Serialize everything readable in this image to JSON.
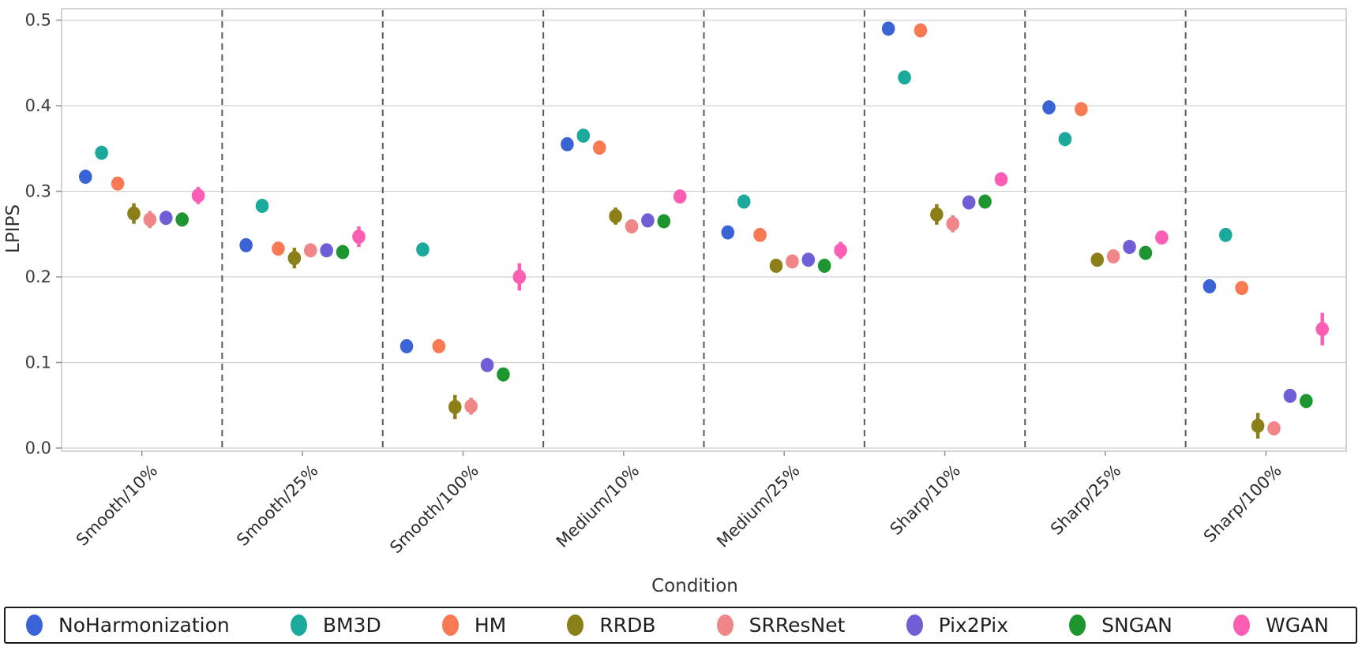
{
  "chart_data": {
    "type": "scatter",
    "title": "",
    "xlabel": "Condition",
    "ylabel": "LPIPS",
    "ylim": [
      0.0,
      0.5
    ],
    "yticks": [
      0.0,
      0.1,
      0.2,
      0.3,
      0.4,
      0.5
    ],
    "grid": true,
    "group_separators": "dashed",
    "legend_position": "bottom",
    "categories": [
      "Smooth/10%",
      "Smooth/25%",
      "Smooth/100%",
      "Medium/10%",
      "Medium/25%",
      "Sharp/10%",
      "Sharp/25%",
      "Sharp/100%"
    ],
    "series": [
      {
        "name": "NoHarmonization",
        "color": "#3A63D6",
        "values": [
          0.317,
          0.237,
          0.119,
          0.355,
          0.252,
          0.49,
          0.398,
          0.189
        ],
        "errors": [
          0.003,
          0.003,
          0.003,
          0.003,
          0.003,
          0.003,
          0.003,
          0.003
        ]
      },
      {
        "name": "BM3D",
        "color": "#1AA99A",
        "values": [
          0.345,
          0.283,
          0.232,
          0.365,
          0.288,
          0.433,
          0.361,
          0.249
        ],
        "errors": [
          0.003,
          0.003,
          0.003,
          0.003,
          0.003,
          0.003,
          0.003,
          0.003
        ]
      },
      {
        "name": "HM",
        "color": "#F97952",
        "values": [
          0.309,
          0.233,
          0.119,
          0.351,
          0.249,
          0.488,
          0.396,
          0.187
        ],
        "errors": [
          0.003,
          0.003,
          0.003,
          0.003,
          0.003,
          0.003,
          0.003,
          0.003
        ]
      },
      {
        "name": "RRDB",
        "color": "#8B7F17",
        "values": [
          0.274,
          0.222,
          0.048,
          0.271,
          0.213,
          0.273,
          0.22,
          0.026
        ],
        "errors": [
          0.012,
          0.012,
          0.014,
          0.01,
          0.008,
          0.012,
          0.008,
          0.015
        ]
      },
      {
        "name": "SRResNet",
        "color": "#F08688",
        "values": [
          0.267,
          0.231,
          0.049,
          0.259,
          0.218,
          0.262,
          0.224,
          0.023
        ],
        "errors": [
          0.01,
          0.006,
          0.01,
          0.008,
          0.006,
          0.01,
          0.006,
          0.008
        ]
      },
      {
        "name": "Pix2Pix",
        "color": "#6E5FD6",
        "values": [
          0.269,
          0.231,
          0.097,
          0.266,
          0.22,
          0.287,
          0.235,
          0.061
        ],
        "errors": [
          0.004,
          0.004,
          0.006,
          0.004,
          0.004,
          0.004,
          0.004,
          0.008
        ]
      },
      {
        "name": "SNGAN",
        "color": "#1E9630",
        "values": [
          0.267,
          0.229,
          0.086,
          0.265,
          0.213,
          0.288,
          0.228,
          0.055
        ],
        "errors": [
          0.004,
          0.004,
          0.005,
          0.004,
          0.004,
          0.004,
          0.004,
          0.008
        ]
      },
      {
        "name": "WGAN",
        "color": "#FB5EB2",
        "values": [
          0.295,
          0.247,
          0.2,
          0.294,
          0.231,
          0.314,
          0.246,
          0.139
        ],
        "errors": [
          0.01,
          0.012,
          0.016,
          0.006,
          0.01,
          0.006,
          0.006,
          0.019
        ]
      }
    ]
  }
}
